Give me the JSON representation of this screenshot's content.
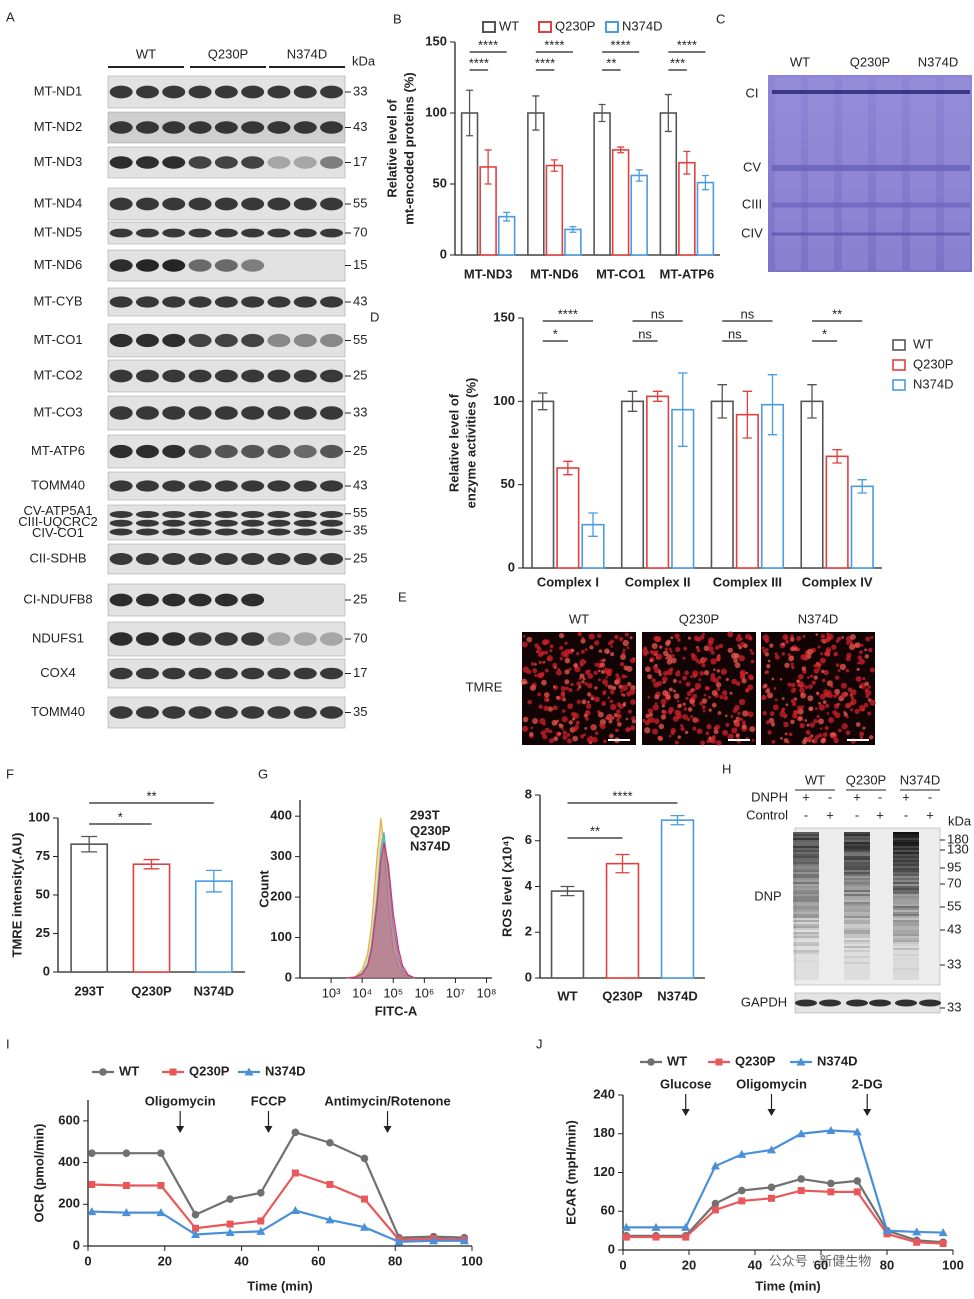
{
  "panel_a": {
    "letter": "A",
    "groups": [
      "WT",
      "Q230P",
      "N374D"
    ],
    "unit": "kDa",
    "rows": [
      {
        "labels": [
          "MT-ND1"
        ],
        "color": "#222222",
        "markers": [
          33
        ]
      },
      {
        "labels": [
          "MT-ND2"
        ],
        "color": "#222222",
        "markers": [
          43
        ]
      },
      {
        "labels": [
          "MT-ND3"
        ],
        "color": "#d63a3a",
        "markers": [
          17
        ]
      },
      {
        "labels": [
          "MT-ND4"
        ],
        "color": "#222222",
        "markers": [
          55
        ]
      },
      {
        "labels": [
          "MT-ND5"
        ],
        "color": "#222222",
        "markers": [
          70
        ]
      },
      {
        "labels": [
          "MT-ND6"
        ],
        "color": "#d63a3a",
        "markers": [
          15
        ]
      },
      {
        "labels": [
          "MT-CYB"
        ],
        "color": "#222222",
        "markers": [
          43
        ]
      },
      {
        "labels": [
          "MT-CO1"
        ],
        "color": "#d63a3a",
        "markers": [
          55
        ]
      },
      {
        "labels": [
          "MT-CO2"
        ],
        "color": "#222222",
        "markers": [
          25
        ]
      },
      {
        "labels": [
          "MT-CO3"
        ],
        "color": "#222222",
        "markers": [
          33
        ]
      },
      {
        "labels": [
          "MT-ATP6"
        ],
        "color": "#d63a3a",
        "markers": [
          25
        ]
      },
      {
        "labels": [
          "TOMM40"
        ],
        "color": "#222222",
        "markers": [
          43
        ]
      },
      {
        "labels": [
          "CV-ATP5A1",
          "CIII-UQCRC2",
          "CIV-CO1"
        ],
        "color": "#222222",
        "markers": [
          55,
          35
        ]
      },
      {
        "labels": [
          "CII-SDHB"
        ],
        "color": "#222222",
        "markers": [
          25
        ]
      },
      {
        "labels": [
          "CI-NDUFB8"
        ],
        "color": "#d63a3a",
        "markers": [
          25
        ]
      },
      {
        "labels": [
          "NDUFS1"
        ],
        "color": "#d63a3a",
        "markers": [
          70
        ]
      },
      {
        "labels": [
          "COX4"
        ],
        "color": "#222222",
        "markers": [
          17
        ]
      },
      {
        "labels": [
          "TOMM40"
        ],
        "color": "#222222",
        "markers": [
          35
        ]
      }
    ]
  },
  "panel_c": {
    "letter": "C",
    "lanes": [
      "WT",
      "Q230P",
      "N374D"
    ],
    "bands": [
      "CI",
      "CV",
      "CIII",
      "CIV"
    ]
  },
  "panel_e": {
    "letter": "E",
    "columns": [
      "WT",
      "Q230P",
      "N374D"
    ],
    "row_label": "TMRE"
  },
  "panel_h": {
    "letter": "H",
    "groups": [
      "WT",
      "Q230P",
      "N374D"
    ],
    "treatments": [
      {
        "name": "DNPH",
        "signs": [
          "+",
          "-",
          "+",
          "-",
          "+",
          "-"
        ]
      },
      {
        "name": "Control",
        "signs": [
          "-",
          "+",
          "-",
          "+",
          "-",
          "+"
        ]
      }
    ],
    "unit": "kDa",
    "markers": [
      180,
      130,
      95,
      70,
      55,
      43,
      33
    ],
    "blot_label": "DNP",
    "loading_label": "GAPDH",
    "loading_marker": 33
  },
  "chart_data": [
    {
      "type": "bar",
      "panel": "B",
      "categories": [
        "MT-ND3",
        "MT-ND6",
        "MT-CO1",
        "MT-ATP6"
      ],
      "series": [
        {
          "name": "WT",
          "color": "#555555",
          "values": [
            100,
            100,
            100,
            100
          ],
          "errors": [
            16,
            12,
            6,
            13
          ]
        },
        {
          "name": "Q230P",
          "color": "#e0403f",
          "values": [
            62,
            63,
            74,
            65
          ],
          "errors": [
            12,
            4,
            2,
            8
          ]
        },
        {
          "name": "N374D",
          "color": "#4a9be0",
          "values": [
            27,
            18,
            56,
            51
          ],
          "errors": [
            3,
            2,
            4,
            5
          ]
        }
      ],
      "ylabel": [
        "Relative level of",
        "mt-encoded proteins (%)"
      ],
      "ylim": [
        0,
        150
      ],
      "yticks": [
        0,
        50,
        100,
        150
      ],
      "significance": [
        [
          "****",
          "****"
        ],
        [
          "****",
          "****"
        ],
        [
          "****",
          "**"
        ],
        [
          "****",
          "***"
        ]
      ],
      "legend": "top"
    },
    {
      "type": "bar",
      "panel": "D",
      "categories": [
        "Complex I",
        "Complex II",
        "Complex III",
        "Complex IV"
      ],
      "series": [
        {
          "name": "WT",
          "color": "#555555",
          "values": [
            100,
            100,
            100,
            100
          ],
          "errors": [
            5,
            6,
            10,
            10
          ]
        },
        {
          "name": "Q230P",
          "color": "#e0403f",
          "values": [
            60,
            103,
            92,
            67
          ],
          "errors": [
            4,
            3,
            14,
            4
          ]
        },
        {
          "name": "N374D",
          "color": "#4a9be0",
          "values": [
            26,
            95,
            98,
            49
          ],
          "errors": [
            7,
            22,
            18,
            4
          ]
        }
      ],
      "ylabel": [
        "Relative level of",
        "enzyme activities (%)"
      ],
      "ylim": [
        0,
        150
      ],
      "yticks": [
        0,
        50,
        100,
        150
      ],
      "significance": [
        [
          "****",
          "*"
        ],
        [
          "ns",
          "ns"
        ],
        [
          "ns",
          "ns"
        ],
        [
          "**",
          "*"
        ]
      ],
      "legend": "right"
    },
    {
      "type": "bar",
      "panel": "F",
      "categories": [
        "293T",
        "Q230P",
        "N374D"
      ],
      "values": [
        83,
        70,
        59
      ],
      "errors": [
        5,
        3,
        7
      ],
      "colors": [
        "#555555",
        "#e0403f",
        "#4a9be0"
      ],
      "ylabel": "TMRE intensity(.AU)",
      "ylim": [
        0,
        100
      ],
      "yticks": [
        0,
        25,
        50,
        75,
        100
      ],
      "significance": [
        "**",
        "*"
      ]
    },
    {
      "type": "density",
      "panel": "G",
      "x": [
        3000,
        6000,
        10000,
        15000,
        20000,
        30000,
        40000,
        50000,
        70000,
        100000,
        150000,
        200000,
        300000,
        500000
      ],
      "xscale": "log",
      "xlim": [
        100,
        150000000
      ],
      "xticks": [
        {
          "value": 1000,
          "label": "10³"
        },
        {
          "value": 10000,
          "label": "10⁴"
        },
        {
          "value": 100000,
          "label": "10⁵"
        },
        {
          "value": 1000000,
          "label": "10⁶"
        },
        {
          "value": 10000000,
          "label": "10⁷"
        },
        {
          "value": 100000000,
          "label": "10⁸"
        }
      ],
      "series": [
        {
          "name": "293T",
          "color": "#e0b040",
          "values": [
            0,
            3,
            20,
            60,
            130,
            300,
            395,
            330,
            180,
            70,
            25,
            10,
            3,
            0
          ]
        },
        {
          "name": "Q230P",
          "color": "#3fb8c8",
          "values": [
            0,
            2,
            12,
            35,
            80,
            200,
            320,
            360,
            260,
            130,
            50,
            20,
            5,
            0
          ]
        },
        {
          "name": "N374D",
          "color": "#d6336c",
          "values": [
            0,
            2,
            10,
            30,
            70,
            180,
            290,
            335,
            280,
            160,
            70,
            30,
            8,
            0
          ]
        }
      ],
      "ylim": [
        0,
        440
      ],
      "yticks": [
        0,
        100,
        200,
        300,
        400
      ],
      "xlabel": "FITC-A",
      "ylabel": "Count",
      "legend": "text"
    },
    {
      "type": "bar",
      "categories": [
        "WT",
        "Q230P",
        "N374D"
      ],
      "values": [
        3.8,
        5.0,
        6.9
      ],
      "errors": [
        0.2,
        0.4,
        0.2
      ],
      "colors": [
        "#555555",
        "#e0403f",
        "#4a9be0"
      ],
      "ylabel": "ROS level (x10⁴)",
      "ylim": [
        0,
        8
      ],
      "yticks": [
        0,
        2,
        4,
        6,
        8
      ],
      "significance": [
        "****",
        "**"
      ]
    },
    {
      "type": "line",
      "panel": "I",
      "x": [
        1,
        10,
        19,
        28,
        37,
        45,
        54,
        63,
        72,
        81,
        90,
        98
      ],
      "series": [
        {
          "name": "WT",
          "color": "#707070",
          "marker": "circle",
          "values": [
            445,
            445,
            445,
            150,
            225,
            255,
            545,
            495,
            420,
            40,
            45,
            40
          ]
        },
        {
          "name": "Q230P",
          "color": "#e8585a",
          "marker": "square",
          "values": [
            295,
            290,
            290,
            85,
            105,
            120,
            350,
            295,
            225,
            30,
            35,
            30
          ]
        },
        {
          "name": "N374D",
          "color": "#4a90d9",
          "marker": "triangle",
          "values": [
            165,
            160,
            160,
            55,
            65,
            70,
            170,
            125,
            90,
            20,
            25,
            25
          ]
        }
      ],
      "xlim": [
        0,
        100
      ],
      "xticks": [
        0,
        20,
        40,
        60,
        80,
        100
      ],
      "ylim": [
        0,
        700
      ],
      "yticks": [
        0,
        200,
        400,
        600
      ],
      "xlabel": "Time (min)",
      "ylabel": "OCR (pmol/min)",
      "annotations": [
        {
          "text": "Oligomycin",
          "x": 24
        },
        {
          "text": "FCCP",
          "x": 47
        },
        {
          "text": "Antimycin/Rotenone",
          "x": 78
        }
      ],
      "legend": "top"
    },
    {
      "type": "line",
      "panel": "J",
      "x": [
        1,
        10,
        19,
        28,
        36,
        45,
        54,
        63,
        71,
        80,
        89,
        97
      ],
      "series": [
        {
          "name": "WT",
          "color": "#707070",
          "marker": "circle",
          "values": [
            22,
            22,
            22,
            72,
            92,
            97,
            110,
            103,
            107,
            30,
            15,
            12
          ]
        },
        {
          "name": "Q230P",
          "color": "#e8585a",
          "marker": "square",
          "values": [
            20,
            20,
            20,
            62,
            76,
            80,
            92,
            90,
            90,
            25,
            12,
            10
          ]
        },
        {
          "name": "N374D",
          "color": "#4a90d9",
          "marker": "triangle",
          "values": [
            35,
            35,
            35,
            130,
            148,
            155,
            180,
            185,
            183,
            30,
            28,
            27
          ]
        }
      ],
      "xlim": [
        0,
        100
      ],
      "xticks": [
        0,
        20,
        40,
        60,
        80,
        100
      ],
      "ylim": [
        0,
        240
      ],
      "yticks": [
        0,
        60,
        120,
        180,
        240
      ],
      "xlabel": "Time (min)",
      "ylabel": "ECAR (mpH/min)",
      "annotations": [
        {
          "text": "Glucose",
          "x": 19
        },
        {
          "text": "Oligomycin",
          "x": 45
        },
        {
          "text": "2-DG",
          "x": 74
        }
      ],
      "legend": "top"
    }
  ],
  "watermark": "公众号 · 新健生物"
}
